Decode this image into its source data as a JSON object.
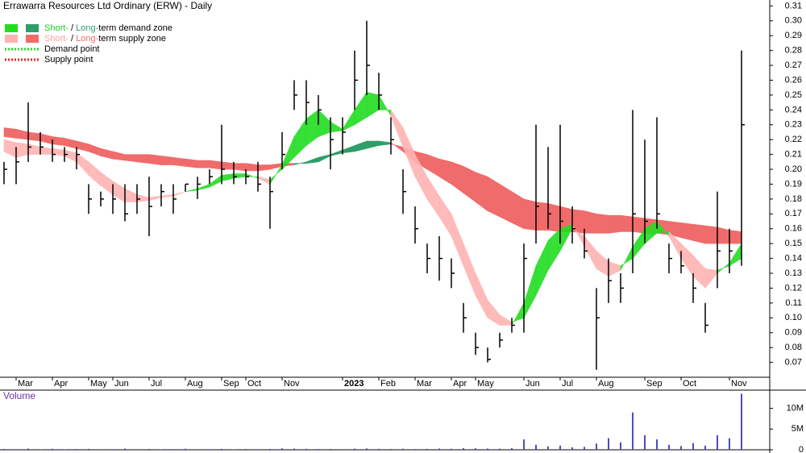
{
  "chart_data": {
    "type": "ohlc",
    "title": "Errawarra Resources Ltd Ordinary (ERW) - Daily",
    "legend": [
      {
        "swatches": [
          "#22dd22",
          "#2e9e6a"
        ],
        "parts": [
          {
            "text": "Short-",
            "color": "#22cc22"
          },
          {
            "text": " / ",
            "color": "#000000"
          },
          {
            "text": "Long-",
            "color": "#2e9e6a"
          },
          {
            "text": "term demand zone",
            "color": "#000000"
          }
        ]
      },
      {
        "swatches": [
          "#ffb3b3",
          "#f06b6b"
        ],
        "parts": [
          {
            "text": "Short-",
            "color": "#ff9f9f"
          },
          {
            "text": " / ",
            "color": "#000000"
          },
          {
            "text": "Long-",
            "color": "#f06b6b"
          },
          {
            "text": "term supply zone",
            "color": "#000000"
          }
        ]
      },
      {
        "line": "#22dd22",
        "parts": [
          {
            "text": "Demand point",
            "color": "#000000"
          }
        ]
      },
      {
        "line": "#ee2222",
        "parts": [
          {
            "text": "Supply point",
            "color": "#000000"
          }
        ]
      }
    ],
    "categories": [
      null,
      "Mar",
      null,
      null,
      "Apr",
      null,
      null,
      "May",
      null,
      "Jun",
      null,
      null,
      "Jul",
      null,
      null,
      "Aug",
      null,
      null,
      "Sep",
      null,
      "Oct",
      null,
      null,
      "Nov",
      null,
      null,
      null,
      null,
      "2023",
      null,
      null,
      "Feb",
      null,
      null,
      "Mar",
      null,
      null,
      "Apr",
      null,
      "May",
      null,
      null,
      null,
      "Jun",
      null,
      null,
      "Jul",
      null,
      null,
      "Aug",
      null,
      null,
      null,
      "Sep",
      null,
      null,
      "Oct",
      null,
      null,
      null,
      "Nov",
      null
    ],
    "high": [
      0.205,
      0.215,
      0.245,
      0.225,
      0.22,
      0.215,
      0.215,
      0.19,
      0.185,
      0.19,
      0.19,
      0.19,
      0.195,
      0.19,
      0.19,
      0.19,
      0.195,
      0.2,
      0.23,
      0.205,
      0.2,
      0.205,
      0.195,
      0.225,
      0.26,
      0.26,
      0.25,
      0.235,
      0.235,
      0.28,
      0.3,
      0.265,
      0.235,
      0.2,
      0.175,
      0.15,
      0.155,
      0.14,
      0.11,
      0.09,
      0.08,
      0.09,
      0.1,
      0.15,
      0.23,
      0.215,
      0.23,
      0.175,
      0.16,
      0.12,
      0.14,
      0.13,
      0.24,
      0.22,
      0.235,
      0.15,
      0.145,
      0.13,
      0.11,
      0.185,
      0.16,
      0.28
    ],
    "low": [
      0.19,
      0.19,
      0.205,
      0.21,
      0.205,
      0.205,
      0.2,
      0.17,
      0.175,
      0.17,
      0.165,
      0.17,
      0.155,
      0.175,
      0.17,
      0.185,
      0.18,
      0.19,
      0.19,
      0.19,
      0.19,
      0.185,
      0.16,
      0.2,
      0.24,
      0.23,
      0.23,
      0.2,
      0.21,
      0.24,
      0.25,
      0.24,
      0.21,
      0.17,
      0.15,
      0.13,
      0.125,
      0.12,
      0.09,
      0.075,
      0.07,
      0.08,
      0.09,
      0.09,
      0.15,
      0.16,
      0.15,
      0.15,
      0.14,
      0.065,
      0.11,
      0.11,
      0.13,
      0.15,
      0.16,
      0.13,
      0.13,
      0.11,
      0.09,
      0.12,
      0.13,
      0.135
    ],
    "close": [
      0.2,
      0.205,
      0.215,
      0.215,
      0.21,
      0.21,
      0.21,
      0.18,
      0.18,
      0.18,
      0.17,
      0.18,
      0.175,
      0.185,
      0.18,
      0.19,
      0.19,
      0.195,
      0.2,
      0.195,
      0.195,
      0.19,
      0.185,
      0.21,
      0.25,
      0.245,
      0.24,
      0.22,
      0.225,
      0.26,
      0.27,
      0.25,
      0.22,
      0.185,
      0.16,
      0.14,
      0.14,
      0.13,
      0.1,
      0.08,
      0.072,
      0.085,
      0.095,
      0.14,
      0.175,
      0.17,
      0.165,
      0.16,
      0.145,
      0.1,
      0.125,
      0.12,
      0.17,
      0.165,
      0.17,
      0.14,
      0.135,
      0.12,
      0.095,
      0.145,
      0.145,
      0.23
    ],
    "bar_color": "#000000",
    "long_term": {
      "demand_color": "#2e9e6a",
      "supply_color": "#f06b6b",
      "fast": [
        0.222,
        0.221,
        0.22,
        0.219,
        0.217,
        0.216,
        0.214,
        0.212,
        0.209,
        0.207,
        0.206,
        0.205,
        0.204,
        0.203,
        0.203,
        0.202,
        0.201,
        0.201,
        0.2,
        0.2,
        0.199,
        0.199,
        0.2,
        0.202,
        0.203,
        0.205,
        0.208,
        0.21,
        0.213,
        0.216,
        0.219,
        0.219,
        0.218,
        0.212,
        0.205,
        0.2,
        0.195,
        0.19,
        0.184,
        0.178,
        0.172,
        0.168,
        0.164,
        0.16,
        0.159,
        0.159,
        0.158,
        0.158,
        0.157,
        0.157,
        0.157,
        0.158,
        0.158,
        0.157,
        0.157,
        0.156,
        0.154,
        0.152,
        0.15,
        0.15,
        0.15,
        0.15
      ],
      "slow": [
        0.228,
        0.227,
        0.225,
        0.224,
        0.222,
        0.221,
        0.219,
        0.217,
        0.214,
        0.212,
        0.21,
        0.21,
        0.21,
        0.209,
        0.208,
        0.207,
        0.206,
        0.206,
        0.205,
        0.204,
        0.204,
        0.203,
        0.203,
        0.204,
        0.204,
        0.204,
        0.205,
        0.209,
        0.211,
        0.212,
        0.214,
        0.216,
        0.217,
        0.215,
        0.212,
        0.21,
        0.207,
        0.205,
        0.202,
        0.198,
        0.195,
        0.19,
        0.185,
        0.18,
        0.178,
        0.177,
        0.175,
        0.173,
        0.172,
        0.17,
        0.169,
        0.169,
        0.168,
        0.167,
        0.166,
        0.165,
        0.164,
        0.163,
        0.162,
        0.161,
        0.159,
        0.158
      ]
    },
    "short_term": {
      "demand_color": "#22dd22",
      "supply_color": "#ffb3b3",
      "fast": [
        0.212,
        0.208,
        0.21,
        0.21,
        0.21,
        0.209,
        0.205,
        0.196,
        0.189,
        0.183,
        0.178,
        0.178,
        0.179,
        0.181,
        0.182,
        0.185,
        0.187,
        0.19,
        0.196,
        0.197,
        0.197,
        0.194,
        0.19,
        0.203,
        0.222,
        0.234,
        0.24,
        0.232,
        0.227,
        0.24,
        0.252,
        0.25,
        0.236,
        0.215,
        0.195,
        0.18,
        0.168,
        0.155,
        0.135,
        0.115,
        0.1,
        0.095,
        0.095,
        0.11,
        0.135,
        0.152,
        0.16,
        0.163,
        0.148,
        0.133,
        0.128,
        0.132,
        0.148,
        0.16,
        0.165,
        0.155,
        0.14,
        0.128,
        0.12,
        0.13,
        0.137,
        0.15
      ],
      "slow": [
        0.22,
        0.218,
        0.217,
        0.215,
        0.214,
        0.213,
        0.211,
        0.205,
        0.198,
        0.192,
        0.187,
        0.183,
        0.181,
        0.182,
        0.183,
        0.185,
        0.186,
        0.188,
        0.192,
        0.194,
        0.195,
        0.195,
        0.193,
        0.2,
        0.208,
        0.216,
        0.222,
        0.225,
        0.226,
        0.23,
        0.235,
        0.24,
        0.24,
        0.228,
        0.21,
        0.195,
        0.182,
        0.17,
        0.15,
        0.13,
        0.112,
        0.102,
        0.097,
        0.1,
        0.115,
        0.132,
        0.145,
        0.16,
        0.155,
        0.145,
        0.138,
        0.135,
        0.14,
        0.15,
        0.157,
        0.158,
        0.15,
        0.142,
        0.133,
        0.132,
        0.135,
        0.14
      ]
    },
    "ylim": [
      0.06,
      0.314
    ],
    "yticks": [
      0.07,
      0.08,
      0.09,
      {
        "value": 0.1,
        "label": "0.10"
      },
      0.11,
      0.12,
      0.13,
      0.14,
      0.15,
      0.16,
      0.17,
      0.18,
      0.19,
      {
        "value": 0.2,
        "label": "0.20"
      },
      0.21,
      0.22,
      0.23,
      0.24,
      0.25,
      0.26,
      0.27,
      0.28,
      0.29,
      {
        "value": 0.3,
        "label": "0.30"
      },
      0.31
    ],
    "volume": {
      "label": "Volume",
      "color": "#4b4bc8",
      "values": [
        200000,
        150000,
        300000,
        120000,
        250000,
        100000,
        180000,
        220000,
        130000,
        160000,
        300000,
        140000,
        200000,
        110000,
        170000,
        260000,
        120000,
        150000,
        230000,
        100000,
        190000,
        140000,
        210000,
        350000,
        300000,
        250000,
        180000,
        200000,
        160000,
        280000,
        320000,
        240000,
        200000,
        260000,
        180000,
        220000,
        300000,
        250000,
        400000,
        350000,
        300000,
        280000,
        400000,
        2500000,
        1200000,
        800000,
        1000000,
        600000,
        700000,
        1500000,
        2800000,
        1800000,
        9000000,
        3500000,
        2500000,
        1200000,
        900000,
        1600000,
        1000000,
        3500000,
        2800000,
        13500000
      ],
      "ylim": [
        0,
        14000000
      ],
      "yticks": [
        0,
        {
          "value": 5000000,
          "label": "5M"
        },
        {
          "value": 10000000,
          "label": "10M"
        }
      ]
    }
  }
}
